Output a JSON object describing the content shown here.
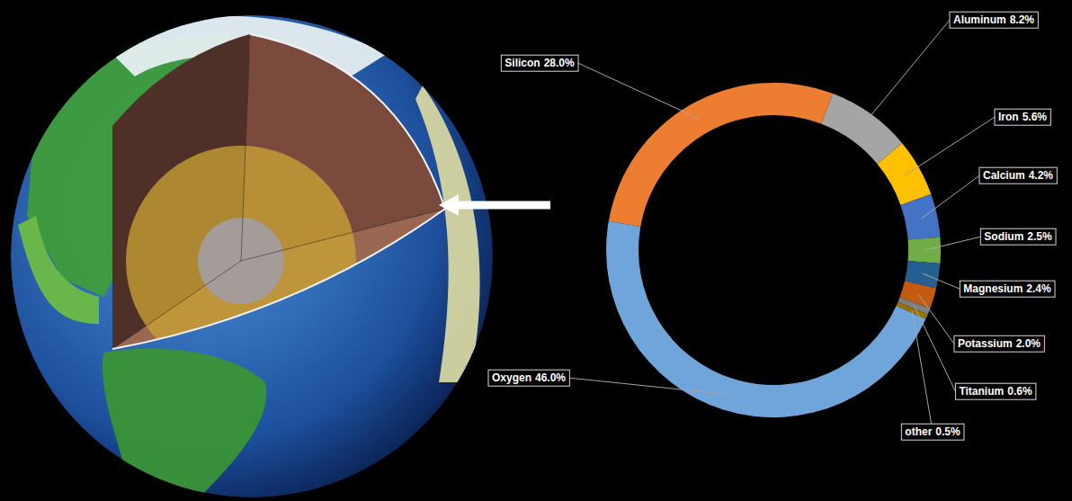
{
  "chart_data": {
    "type": "doughnut",
    "categories": [
      "Silicon",
      "Aluminum",
      "Iron",
      "Calcium",
      "Sodium",
      "Magnesium",
      "Potassium",
      "Titanium",
      "other",
      "Oxygen"
    ],
    "values": [
      28.0,
      8.2,
      5.6,
      4.2,
      2.5,
      2.4,
      2.0,
      0.6,
      0.5,
      46.0
    ],
    "value_labels": [
      "28.0%",
      "8.2%",
      "5.6%",
      "4.2%",
      "2.5%",
      "2.4%",
      "2.0%",
      "0.6%",
      "0.5%",
      "46.0%"
    ],
    "colors": [
      "#ed7d31",
      "#a5a5a5",
      "#ffc000",
      "#4472c4",
      "#70ad47",
      "#255e91",
      "#c55a11",
      "#7f7f7f",
      "#997300",
      "#6fa5db"
    ],
    "data_labels": true
  }
}
